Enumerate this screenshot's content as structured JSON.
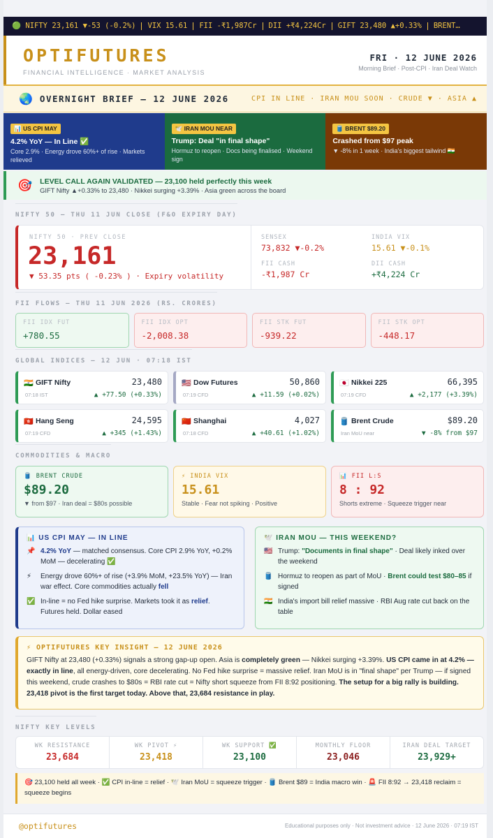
{
  "ticker": [
    "🟢 NIFTY 23,161 ▼-53 (-0.2%)",
    "VIX 15.61",
    "FII -₹1,987Cr",
    "DII +₹4,224Cr",
    "GIFT 23,480 ▲+0.33%",
    "BRENT…"
  ],
  "header": {
    "brand": "OPTIFUTURES",
    "tagline": "FINANCIAL INTELLIGENCE · MARKET ANALYSIS",
    "date": "FRI · 12 JUNE 2026",
    "edition": "Morning Brief · Post-CPI · Iran Deal Watch"
  },
  "brief": {
    "icon": "🌏",
    "title": "OVERNIGHT BRIEF — 12 JUNE 2026",
    "tags": "CPI IN LINE · IRAN MOU SOON · CRUDE ▼ · ASIA ▲"
  },
  "cards": [
    {
      "tag": "📊 US CPI MAY",
      "head": "4.2% YoY — In Line ✅",
      "sub": "Core 2.9% · Energy drove 60%+ of rise · Markets relieved"
    },
    {
      "tag": "🕊️ IRAN MOU NEAR",
      "head": "Trump: Deal \"in final shape\"",
      "sub": "Hormuz to reopen · Docs being finalised · Weekend sign"
    },
    {
      "tag": "🛢️ BRENT $89.20",
      "head": "Crashed from $97 peak",
      "sub": "▼ -8% in 1 week · India's biggest tailwind 🇮🇳"
    }
  ],
  "level_call": {
    "icon": "🎯",
    "title": "LEVEL CALL AGAIN VALIDATED — 23,100 held perfectly this week",
    "sub": "GIFT Nifty ▲+0.33% to 23,480 · Nikkei surging +3.39% · Asia green across the board"
  },
  "nifty": {
    "section": "NIFTY 50 — THU 11 JUN CLOSE (F&O EXPIRY DAY)",
    "label": "NIFTY 50 · PREV CLOSE",
    "value": "23,161",
    "change": "▼ 53.35 pts ( -0.23% ) · Expiry volatility",
    "stats": [
      {
        "label": "SENSEX",
        "value": "73,832 ▼-0.2%"
      },
      {
        "label": "INDIA VIX",
        "value": "15.61 ▼-0.1%"
      },
      {
        "label": "FII CASH",
        "value": "-₹1,987 Cr"
      },
      {
        "label": "DII CASH",
        "value": "+₹4,224 Cr"
      }
    ]
  },
  "fii": {
    "section": "FII FLOWS — THU 11 JUN 2026 (RS. CRORES)",
    "items": [
      {
        "label": "FII IDX FUT",
        "value": "+780.55"
      },
      {
        "label": "FII IDX OPT",
        "value": "-2,008.38"
      },
      {
        "label": "FII STK FUT",
        "value": "-939.22"
      },
      {
        "label": "FII STK OPT",
        "value": "-448.17"
      }
    ]
  },
  "global": {
    "section": "GLOBAL INDICES — 12 JUN · 07:18 IST",
    "items": [
      {
        "flag": "🇮🇳",
        "name": "GIFT Nifty",
        "value": "23,480",
        "time": "07:18 IST",
        "change": "▲ +77.50 (+0.33%)"
      },
      {
        "flag": "🇺🇸",
        "name": "Dow Futures",
        "value": "50,860",
        "time": "07:19 CFD",
        "change": "▲ +11.59 (+0.02%)"
      },
      {
        "flag": "🇯🇵",
        "name": "Nikkei 225",
        "value": "66,395",
        "time": "07:19 CFD",
        "change": "▲ +2,177 (+3.39%)"
      },
      {
        "flag": "🇭🇰",
        "name": "Hang Seng",
        "value": "24,595",
        "time": "07:19 CFD",
        "change": "▲ +345 (+1.43%)"
      },
      {
        "flag": "🇨🇳",
        "name": "Shanghai",
        "value": "4,027",
        "time": "07:18 CFD",
        "change": "▲ +40.61 (+1.02%)"
      },
      {
        "flag": "🛢️",
        "name": "Brent Crude",
        "value": "$89.20",
        "time": "Iran MoU near",
        "change": "▼ -8% from $97"
      }
    ]
  },
  "commodities": {
    "section": "COMMODITIES & MACRO",
    "items": [
      {
        "label": "🛢️ BRENT CRUDE",
        "value": "$89.20",
        "sub": "▼ from $97 · Iran deal = $80s possible"
      },
      {
        "label": "⚡ INDIA VIX",
        "value": "15.61",
        "sub": "Stable · Fear not spiking · Positive"
      },
      {
        "label": "📊 FII L:S",
        "value": "8 : 92",
        "sub": "Shorts extreme · Squeeze trigger near"
      }
    ]
  },
  "panels": {
    "cpi": {
      "title": "📊 US CPI MAY — IN LINE",
      "items": [
        {
          "icon": "📌",
          "parts": [
            "4.2% YoY",
            " — matched consensus. Core CPI 2.9% YoY, +0.2% MoM — decelerating ✅"
          ]
        },
        {
          "icon": "⚡",
          "parts": [
            "Energy drove 60%+ of rise (+3.9% MoM, +23.5% YoY) — Iran war effect. Core commodities actually ",
            "fell"
          ]
        },
        {
          "icon": "✅",
          "parts": [
            "In-line = no Fed hike surprise. Markets took it as ",
            "relief",
            ". Futures held. Dollar eased"
          ]
        }
      ]
    },
    "iran": {
      "title": "🕊️ IRAN MOU — THIS WEEKEND?",
      "items": [
        {
          "icon": "🇺🇸",
          "parts": [
            "Trump: ",
            "\"Documents in final shape\"",
            " · Deal likely inked over the weekend"
          ]
        },
        {
          "icon": "🛢️",
          "parts": [
            "Hormuz to reopen as part of MoU · ",
            "Brent could test $80–85",
            " if signed"
          ]
        },
        {
          "icon": "🇮🇳",
          "parts": [
            "India's import bill relief massive · RBI Aug rate cut back on the table"
          ]
        }
      ]
    }
  },
  "insight": {
    "title": "⚡ OPTIFUTURES KEY INSIGHT — 12 JUNE 2026",
    "parts": [
      "GIFT Nifty at 23,480 (+0.33%) signals a strong gap-up open. Asia is ",
      "completely green",
      " — Nikkei surging +3.39%. ",
      "US CPI came in at 4.2% — exactly in line",
      ", all energy-driven, core decelerating. No Fed hike surprise = massive relief. Iran MoU is in \"final shape\" per Trump — if signed this weekend, crude crashes to $80s = RBI rate cut = Nifty short squeeze from FII 8:92 positioning. ",
      "The setup for a big rally is building. 23,418 pivot is the first target today. Above that, 23,684 resistance in play."
    ]
  },
  "levels": {
    "section": "NIFTY KEY LEVELS",
    "items": [
      {
        "label": "WK RESISTANCE",
        "value": "23,684"
      },
      {
        "label": "WK PIVOT ⚡",
        "value": "23,418"
      },
      {
        "label": "WK SUPPORT ✅",
        "value": "23,100"
      },
      {
        "label": "MONTHLY FLOOR",
        "value": "23,046"
      },
      {
        "label": "IRAN DEAL TARGET",
        "value": "23,929+"
      }
    ]
  },
  "note": "🎯 23,100 held all week · ✅ CPI in-line = relief · 🕊️ Iran MoU = squeeze trigger · 🛢️ Brent $89 = India macro win · 🚨 FII 8:92 → 23,418 reclaim = squeeze begins",
  "footer": {
    "handle": "@optifutures",
    "disclaimer": "Educational purposes only · Not investment advice · 12 June 2026 · 07:19 IST"
  }
}
